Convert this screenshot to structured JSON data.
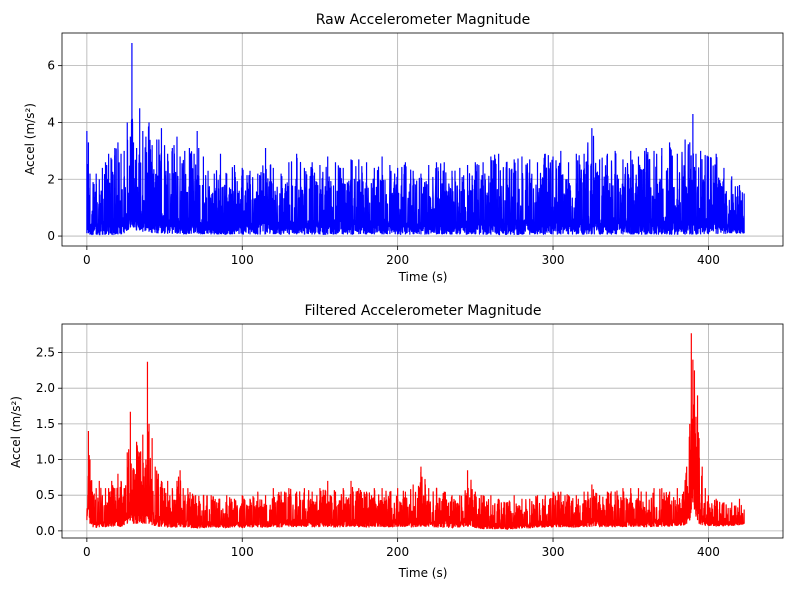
{
  "chart_data": [
    {
      "type": "line",
      "title": "Raw Accelerometer Magnitude",
      "xlabel": "Time (s)",
      "ylabel": "Accel (m/s²)",
      "xlim": [
        -16,
        448
      ],
      "ylim": [
        -0.35,
        7.15
      ],
      "xticks": [
        0,
        100,
        200,
        300,
        400
      ],
      "yticks": [
        0,
        2,
        4,
        6
      ],
      "ytick_labels": [
        "0",
        "2",
        "4",
        "6"
      ],
      "grid": true,
      "series": [
        {
          "color": "#0000ff",
          "x_range": [
            0,
            423
          ],
          "envelope": {
            "x": [
              0,
              1,
              2,
              4,
              6,
              8,
              10,
              12,
              14,
              16,
              18,
              20,
              22,
              24,
              26,
              28,
              29,
              30,
              32,
              34,
              36,
              38,
              40,
              42,
              45,
              48,
              50,
              52,
              55,
              58,
              60,
              63,
              66,
              69,
              71,
              72,
              75,
              78,
              82,
              86,
              90,
              95,
              100,
              105,
              110,
              115,
              120,
              125,
              130,
              135,
              140,
              145,
              150,
              155,
              160,
              165,
              170,
              175,
              180,
              185,
              190,
              195,
              200,
              205,
              210,
              215,
              220,
              225,
              230,
              235,
              240,
              245,
              250,
              255,
              260,
              265,
              270,
              275,
              280,
              285,
              290,
              295,
              300,
              305,
              310,
              315,
              320,
              325,
              330,
              335,
              340,
              345,
              350,
              355,
              360,
              365,
              370,
              375,
              380,
              385,
              388,
              390,
              392,
              395,
              400,
              405,
              410,
              415,
              420,
              423
            ],
            "high": [
              3.7,
              3.3,
              2.2,
              1.9,
              2.2,
              2.0,
              2.4,
              2.6,
              2.9,
              2.7,
              3.1,
              3.3,
              2.9,
              3.0,
              4.0,
              3.5,
              6.8,
              3.3,
              3.1,
              4.5,
              3.7,
              3.5,
              4.0,
              3.2,
              3.4,
              3.8,
              3.2,
              2.9,
              3.1,
              3.5,
              2.8,
              3.0,
              3.1,
              2.9,
              3.7,
              3.1,
              2.8,
              2.3,
              2.2,
              2.9,
              2.2,
              2.5,
              2.4,
              2.3,
              2.2,
              3.1,
              2.4,
              2.2,
              2.6,
              2.9,
              2.4,
              2.6,
              2.5,
              2.8,
              2.6,
              2.4,
              2.7,
              2.7,
              2.6,
              2.4,
              2.8,
              2.5,
              2.4,
              2.6,
              2.3,
              2.2,
              2.5,
              2.6,
              2.6,
              2.3,
              2.4,
              2.5,
              2.6,
              2.6,
              2.8,
              2.9,
              2.6,
              2.7,
              2.8,
              2.7,
              2.6,
              2.9,
              2.8,
              3.0,
              2.6,
              2.9,
              2.9,
              3.8,
              2.7,
              2.9,
              3.0,
              2.7,
              3.0,
              2.8,
              3.1,
              3.0,
              3.1,
              3.3,
              2.9,
              3.4,
              3.3,
              4.3,
              2.9,
              3.0,
              2.8,
              2.9,
              2.4,
              2.1,
              1.8,
              1.5
            ],
            "low": [
              0.1,
              0.1,
              0.05,
              0.05,
              0.06,
              0.04,
              0.05,
              0.05,
              0.04,
              0.05,
              0.05,
              0.06,
              0.06,
              0.1,
              0.2,
              0.3,
              0.4,
              0.3,
              0.2,
              0.2,
              0.15,
              0.2,
              0.15,
              0.12,
              0.1,
              0.1,
              0.08,
              0.08,
              0.08,
              0.08,
              0.08,
              0.07,
              0.08,
              0.1,
              0.1,
              0.08,
              0.07,
              0.08,
              0.06,
              0.07,
              0.06,
              0.07,
              0.06,
              0.06,
              0.06,
              0.07,
              0.07,
              0.06,
              0.07,
              0.06,
              0.06,
              0.07,
              0.06,
              0.06,
              0.07,
              0.06,
              0.06,
              0.07,
              0.06,
              0.06,
              0.06,
              0.07,
              0.06,
              0.06,
              0.07,
              0.06,
              0.06,
              0.06,
              0.07,
              0.06,
              0.06,
              0.06,
              0.06,
              0.06,
              0.05,
              0.05,
              0.04,
              0.04,
              0.05,
              0.05,
              0.06,
              0.06,
              0.06,
              0.06,
              0.06,
              0.06,
              0.06,
              0.07,
              0.06,
              0.06,
              0.07,
              0.06,
              0.06,
              0.06,
              0.06,
              0.06,
              0.06,
              0.05,
              0.05,
              0.05,
              0.06,
              0.06,
              0.06,
              0.06,
              0.07,
              0.08,
              0.08,
              0.1,
              0.1,
              0.1
            ]
          }
        }
      ]
    },
    {
      "type": "line",
      "title": "Filtered Accelerometer Magnitude",
      "xlabel": "Time (s)",
      "ylabel": "Accel (m/s²)",
      "xlim": [
        -16,
        448
      ],
      "ylim": [
        -0.1,
        2.9
      ],
      "xticks": [
        0,
        100,
        200,
        300,
        400
      ],
      "yticks": [
        0,
        0.5,
        1,
        1.5,
        2,
        2.5
      ],
      "ytick_labels": [
        "0.0",
        "0.5",
        "1.0",
        "1.5",
        "2.0",
        "2.5"
      ],
      "grid": true,
      "series": [
        {
          "color": "#ff0000",
          "x_range": [
            0,
            423
          ],
          "envelope": {
            "x": [
              0,
              1,
              2,
              4,
              6,
              8,
              10,
              12,
              14,
              16,
              18,
              20,
              22,
              24,
              26,
              28,
              30,
              32,
              34,
              36,
              38,
              39,
              40,
              42,
              44,
              46,
              48,
              50,
              52,
              55,
              58,
              60,
              62,
              65,
              70,
              75,
              80,
              85,
              90,
              95,
              100,
              105,
              110,
              115,
              120,
              125,
              130,
              135,
              140,
              145,
              150,
              155,
              160,
              165,
              170,
              175,
              180,
              185,
              190,
              195,
              200,
              205,
              210,
              215,
              220,
              225,
              230,
              235,
              240,
              245,
              250,
              255,
              260,
              265,
              270,
              275,
              280,
              285,
              290,
              295,
              300,
              305,
              310,
              315,
              320,
              325,
              330,
              335,
              340,
              345,
              350,
              355,
              360,
              365,
              370,
              375,
              380,
              384,
              386,
              388,
              389,
              390,
              391,
              392,
              393,
              394,
              396,
              398,
              400,
              405,
              410,
              415,
              420,
              423
            ],
            "high": [
              0.2,
              1.4,
              1.0,
              0.5,
              0.6,
              0.7,
              0.5,
              0.6,
              0.6,
              0.7,
              0.6,
              0.8,
              0.7,
              0.6,
              1.1,
              1.67,
              0.8,
              1.25,
              1.1,
              1.35,
              1.0,
              2.37,
              1.5,
              1.3,
              0.9,
              0.8,
              0.7,
              0.6,
              0.7,
              0.6,
              0.7,
              0.85,
              0.6,
              0.6,
              0.5,
              0.5,
              0.5,
              0.45,
              0.5,
              0.45,
              0.5,
              0.45,
              0.55,
              0.5,
              0.6,
              0.55,
              0.6,
              0.55,
              0.6,
              0.55,
              0.6,
              0.7,
              0.55,
              0.6,
              0.7,
              0.6,
              0.55,
              0.6,
              0.6,
              0.55,
              0.6,
              0.55,
              0.65,
              0.9,
              0.6,
              0.6,
              0.55,
              0.5,
              0.5,
              0.85,
              0.55,
              0.5,
              0.5,
              0.45,
              0.4,
              0.5,
              0.45,
              0.45,
              0.5,
              0.5,
              0.55,
              0.55,
              0.5,
              0.5,
              0.55,
              0.65,
              0.5,
              0.55,
              0.55,
              0.6,
              0.6,
              0.6,
              0.55,
              0.6,
              0.6,
              0.55,
              0.6,
              0.55,
              0.9,
              1.5,
              2.77,
              2.4,
              2.25,
              1.6,
              1.9,
              1.3,
              0.9,
              0.6,
              0.5,
              0.45,
              0.4,
              0.4,
              0.45,
              0.3
            ],
            "low": [
              0.15,
              0.3,
              0.1,
              0.05,
              0.04,
              0.05,
              0.06,
              0.05,
              0.06,
              0.06,
              0.07,
              0.07,
              0.06,
              0.08,
              0.1,
              0.15,
              0.1,
              0.1,
              0.12,
              0.1,
              0.1,
              0.2,
              0.1,
              0.08,
              0.07,
              0.06,
              0.06,
              0.06,
              0.05,
              0.05,
              0.05,
              0.06,
              0.05,
              0.05,
              0.04,
              0.04,
              0.05,
              0.05,
              0.04,
              0.05,
              0.04,
              0.05,
              0.05,
              0.05,
              0.06,
              0.05,
              0.06,
              0.06,
              0.06,
              0.05,
              0.06,
              0.06,
              0.05,
              0.06,
              0.06,
              0.05,
              0.05,
              0.06,
              0.06,
              0.05,
              0.06,
              0.06,
              0.05,
              0.06,
              0.06,
              0.05,
              0.05,
              0.04,
              0.05,
              0.06,
              0.04,
              0.03,
              0.03,
              0.03,
              0.02,
              0.03,
              0.04,
              0.04,
              0.05,
              0.05,
              0.05,
              0.05,
              0.05,
              0.05,
              0.06,
              0.06,
              0.05,
              0.06,
              0.05,
              0.06,
              0.06,
              0.06,
              0.05,
              0.06,
              0.06,
              0.06,
              0.07,
              0.08,
              0.1,
              0.15,
              0.3,
              0.4,
              0.3,
              0.2,
              0.15,
              0.1,
              0.08,
              0.07,
              0.07,
              0.06,
              0.07,
              0.07,
              0.08,
              0.1
            ]
          }
        }
      ]
    }
  ]
}
